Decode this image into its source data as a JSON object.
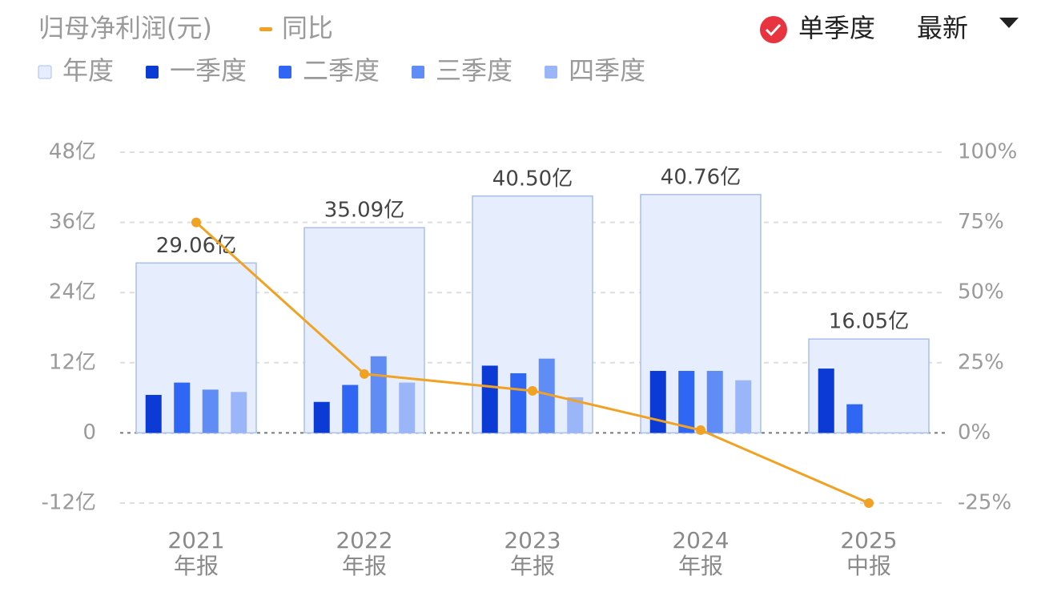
{
  "chart_data": {
    "type": "bar",
    "title": "归母净利润(元)",
    "controls": {
      "single_quarter": "单季度",
      "latest": "最新"
    },
    "categories": [
      "2021",
      "2022",
      "2023",
      "2024",
      "2025"
    ],
    "period_labels": [
      "年报",
      "年报",
      "年报",
      "年报",
      "中报"
    ],
    "ylim": [
      -12,
      48
    ],
    "yticks": [
      {
        "value": -12,
        "label": "-12亿"
      },
      0,
      {
        "value": 12,
        "label": "12亿"
      },
      {
        "value": 24,
        "label": "24亿"
      },
      {
        "value": 36,
        "label": "36亿"
      },
      {
        "value": 48,
        "label": "48亿"
      }
    ],
    "y2lim": [
      -25,
      100
    ],
    "y2ticks": [
      {
        "value": -25,
        "label": "-25%"
      },
      {
        "value": 0,
        "label": "0%"
      },
      {
        "value": 25,
        "label": "25%"
      },
      {
        "value": 50,
        "label": "50%"
      },
      {
        "value": 75,
        "label": "75%"
      },
      {
        "value": 100,
        "label": "100%"
      }
    ],
    "grid": true,
    "series": [
      {
        "name": "年度",
        "type": "box",
        "color": "#e6edfc",
        "values": [
          29.06,
          35.09,
          40.5,
          40.76,
          16.05
        ],
        "value_labels": [
          "29.06亿",
          "35.09亿",
          "40.50亿",
          "40.76亿",
          "16.05亿"
        ]
      },
      {
        "name": "一季度",
        "type": "bar",
        "color": "#0b3bd4",
        "values": [
          6.5,
          5.3,
          11.5,
          10.6,
          11.0
        ]
      },
      {
        "name": "二季度",
        "type": "bar",
        "color": "#2f66f4",
        "values": [
          8.6,
          8.2,
          10.2,
          10.6,
          4.9
        ]
      },
      {
        "name": "三季度",
        "type": "bar",
        "color": "#5f8cf5",
        "values": [
          7.4,
          13.1,
          12.7,
          10.6,
          null
        ]
      },
      {
        "name": "四季度",
        "type": "bar",
        "color": "#9bb6f8",
        "values": [
          7.0,
          8.6,
          6.1,
          9.0,
          null
        ]
      },
      {
        "name": "同比",
        "type": "line",
        "axis": "y2",
        "color": "#f2a223",
        "values": [
          75,
          21,
          15,
          1,
          -25
        ]
      }
    ]
  }
}
